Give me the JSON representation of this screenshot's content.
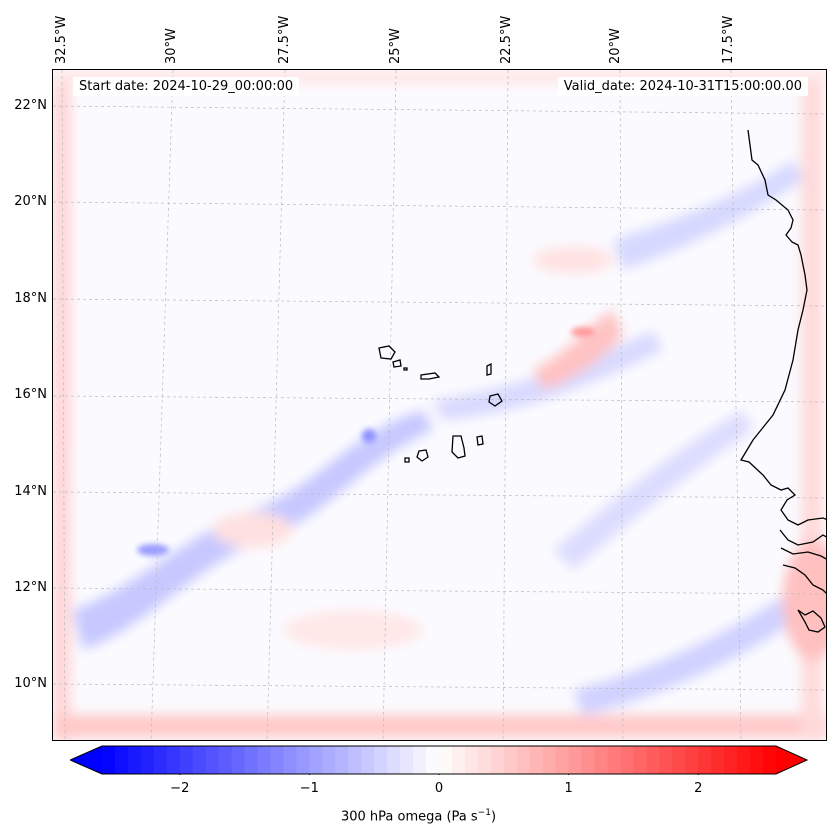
{
  "map": {
    "start_date": "Start date: 2024-10-29_00:00:00",
    "valid_date": "Valid_date: 2024-10-31T15:00:00.00",
    "longitude_labels": [
      "32.5°W",
      "30°W",
      "27.5°W",
      "25°W",
      "22.5°W",
      "20°W",
      "17.5°W"
    ],
    "latitude_labels": [
      "22°N",
      "20°N",
      "18°N",
      "16°N",
      "14°N",
      "12°N",
      "10°N"
    ],
    "extent": {
      "lon_min": -33.0,
      "lon_max": -15.8,
      "lat_min": 8.9,
      "lat_max": 22.8
    },
    "colors": {
      "negative": "#0000ff",
      "zero": "#ffffff",
      "positive": "#ff0000",
      "coast": "#000000"
    }
  },
  "colorbar": {
    "ticks": [
      "−2",
      "−1",
      "0",
      "1",
      "2"
    ],
    "tick_values": [
      -2,
      -1,
      0,
      1,
      2
    ],
    "range": [
      -2.6,
      2.6
    ],
    "label_main": "300 hPa omega (Pa s",
    "label_sup": "−1",
    "label_end": ")"
  }
}
